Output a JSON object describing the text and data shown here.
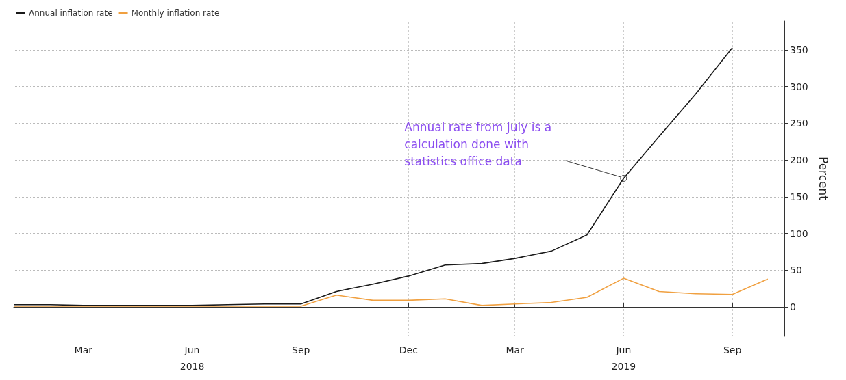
{
  "chart_data": {
    "type": "line",
    "x": [
      "2018-01",
      "2018-02",
      "2018-03",
      "2018-04",
      "2018-05",
      "2018-06",
      "2018-07",
      "2018-08",
      "2018-09",
      "2018-10",
      "2018-11",
      "2018-12",
      "2019-01",
      "2019-02",
      "2019-03",
      "2019-04",
      "2019-05",
      "2019-06",
      "2019-07",
      "2019-08",
      "2019-09",
      "2019-10"
    ],
    "series": [
      {
        "name": "Annual inflation rate",
        "color": "#1a1a1a",
        "values": [
          3,
          3,
          2,
          2,
          2,
          2,
          3,
          4,
          4,
          21,
          31,
          42,
          57,
          59,
          66,
          76,
          98,
          175,
          232,
          290,
          353,
          null
        ]
      },
      {
        "name": "Monthly inflation rate",
        "color": "#f0a040",
        "values": [
          1,
          1,
          1,
          1,
          1,
          1,
          1,
          1,
          1,
          16,
          9,
          9,
          11,
          2,
          4,
          6,
          13,
          39,
          21,
          18,
          17,
          38
        ]
      }
    ],
    "ylabel": "Percent",
    "xlim": [
      "2018-01",
      "2019-10-15"
    ],
    "xticks": [
      {
        "value": "2018-03",
        "label": "Mar"
      },
      {
        "value": "2018-06",
        "label": "Jun\n2018"
      },
      {
        "value": "2018-09",
        "label": "Sep"
      },
      {
        "value": "2018-12",
        "label": "Dec"
      },
      {
        "value": "2019-03",
        "label": "Mar"
      },
      {
        "value": "2019-06",
        "label": "Jun\n2019"
      },
      {
        "value": "2019-09",
        "label": "Sep"
      }
    ],
    "ylim": [
      -40,
      390
    ],
    "yticks": [
      0,
      50,
      100,
      150,
      200,
      250,
      300,
      350
    ],
    "grid": true,
    "legend": "top left",
    "marker": "none",
    "line_style": "solid",
    "annotations": [
      {
        "text": "Annual rate from July is a calculation done with statistics office data",
        "x": "2019-06",
        "y": 175
      }
    ]
  }
}
